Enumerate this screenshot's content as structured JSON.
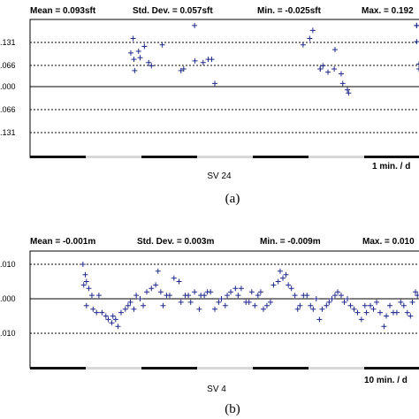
{
  "chart_data": [
    {
      "type": "scatter",
      "panel_label": "(a)",
      "stats": [
        "Mean = 0.093sft",
        "Std. Dev. = 0.057sft",
        "Min. = -0.025sft",
        "Max. = 0.192"
      ],
      "ytick_labels": [
        ".131",
        ".066",
        ".000",
        ".066",
        ".131"
      ],
      "yticks": [
        0.131,
        0.066,
        0.0,
        -0.066,
        -0.131
      ],
      "ylim": [
        -0.2,
        0.2
      ],
      "xlim": [
        0,
        100
      ],
      "sv_label": "SV 24",
      "time_scale": "1 min. / d",
      "grid": "dashed horizontal reference lines",
      "points": [
        [
          26.5,
          0.15
        ],
        [
          25.9,
          0.105
        ],
        [
          27.9,
          0.11
        ],
        [
          29.4,
          0.125
        ],
        [
          28.3,
          0.09
        ],
        [
          26.7,
          0.085
        ],
        [
          30.5,
          0.075
        ],
        [
          31.2,
          0.065
        ],
        [
          34,
          0.13
        ],
        [
          26.9,
          0.05
        ],
        [
          42.3,
          0.19
        ],
        [
          38.8,
          0.05
        ],
        [
          39.5,
          0.055
        ],
        [
          42.4,
          0.08
        ],
        [
          44.5,
          0.075
        ],
        [
          45.8,
          0.085
        ],
        [
          46.7,
          0.085
        ],
        [
          47.5,
          0.01
        ],
        [
          70.2,
          0.13
        ],
        [
          71.9,
          0.15
        ],
        [
          72.7,
          0.175
        ],
        [
          78.4,
          0.115
        ],
        [
          74.6,
          0.055
        ],
        [
          74.6,
          0.055
        ],
        [
          75.3,
          0.065
        ],
        [
          78.2,
          0.055
        ],
        [
          76.6,
          0.045
        ],
        [
          80.4,
          0.01
        ],
        [
          81.6,
          -0.01
        ],
        [
          81.9,
          -0.02
        ],
        [
          80,
          0.04
        ],
        [
          99.4,
          0.19
        ],
        [
          99.4,
          0.19
        ],
        [
          99.4,
          0.14
        ],
        [
          100,
          0.07
        ],
        [
          100,
          0.055
        ]
      ]
    },
    {
      "type": "scatter",
      "panel_label": "(b)",
      "stats": [
        "Mean = -0.001m",
        "Std. Dev. = 0.003m",
        "Min. = -0.009m",
        "Max. = 0.010"
      ],
      "ytick_labels": [
        ".010",
        ".000",
        ".010"
      ],
      "yticks": [
        0.01,
        0.0,
        -0.01
      ],
      "ylim": [
        -0.02,
        0.02
      ],
      "xlim": [
        0,
        100
      ],
      "sv_label": "SV 4",
      "time_scale": "10 min. / d",
      "grid": "dashed horizontal reference lines",
      "points": [
        [
          13.6,
          0.01
        ],
        [
          14.2,
          0.007
        ],
        [
          13.8,
          0.004
        ],
        [
          14.5,
          0.005
        ],
        [
          15.1,
          0.003
        ],
        [
          15.9,
          0.001
        ],
        [
          14.5,
          -0.002
        ],
        [
          16.2,
          -0.003
        ],
        [
          17.1,
          -0.004
        ],
        [
          17.7,
          0.001
        ],
        [
          18.5,
          -0.004
        ],
        [
          19.5,
          -0.005
        ],
        [
          20.1,
          -0.006
        ],
        [
          21.3,
          -0.005
        ],
        [
          22,
          -0.006
        ],
        [
          21,
          -0.007
        ],
        [
          22.6,
          -0.008
        ],
        [
          23.4,
          -0.004
        ],
        [
          24.5,
          -0.003
        ],
        [
          25.2,
          -0.002
        ],
        [
          25.8,
          -0.001
        ],
        [
          26.7,
          -0.003
        ],
        [
          27.3,
          0.001
        ],
        [
          28.3,
          0
        ],
        [
          29.1,
          -0.002
        ],
        [
          30,
          0.002
        ],
        [
          31.2,
          0.003
        ],
        [
          32.3,
          0.004
        ],
        [
          32.9,
          0.008
        ],
        [
          33.6,
          0.002
        ],
        [
          34.2,
          -0.002
        ],
        [
          35.1,
          0.001
        ],
        [
          35.9,
          0.001
        ],
        [
          37,
          0.006
        ],
        [
          38.3,
          0.005
        ],
        [
          38.8,
          -0.001
        ],
        [
          39.9,
          0.001
        ],
        [
          40.7,
          0.001
        ],
        [
          41.3,
          -0.001
        ],
        [
          42.3,
          0.002
        ],
        [
          43.5,
          -0.003
        ],
        [
          43.9,
          0.001
        ],
        [
          44.8,
          0.001
        ],
        [
          45.6,
          0.002
        ],
        [
          46.4,
          0.002
        ],
        [
          47.5,
          -0.003
        ],
        [
          48.5,
          -0.001
        ],
        [
          49.2,
          0
        ],
        [
          50.2,
          -0.002
        ],
        [
          50.7,
          0.001
        ],
        [
          51.6,
          0.002
        ],
        [
          52.8,
          0.003
        ],
        [
          53.5,
          0.001
        ],
        [
          54.3,
          0.003
        ],
        [
          55.5,
          -0.001
        ],
        [
          56.3,
          -0.001
        ],
        [
          57,
          0.002
        ],
        [
          57.8,
          -0.002
        ],
        [
          58.6,
          0.001
        ],
        [
          59.3,
          0.002
        ],
        [
          60,
          -0.003
        ],
        [
          60.9,
          -0.002
        ],
        [
          61.8,
          -0.001
        ],
        [
          62.6,
          0.004
        ],
        [
          63.8,
          0.005
        ],
        [
          64.3,
          0.008
        ],
        [
          65,
          0.006
        ],
        [
          65.8,
          0.007
        ],
        [
          66.4,
          0.004
        ],
        [
          67.2,
          0.003
        ],
        [
          68.1,
          0.001
        ],
        [
          68.8,
          -0.003
        ],
        [
          69.4,
          -0.002
        ],
        [
          70.3,
          0.001
        ],
        [
          71.2,
          0.001
        ],
        [
          72.1,
          -0.002
        ],
        [
          72.8,
          -0.003
        ],
        [
          73.6,
          0
        ],
        [
          74.4,
          -0.006
        ],
        [
          75.1,
          -0.003
        ],
        [
          76.2,
          -0.002
        ],
        [
          76.9,
          -0.001
        ],
        [
          77.6,
          0
        ],
        [
          78.4,
          0.001
        ],
        [
          79.1,
          0.002
        ],
        [
          80,
          0.001
        ],
        [
          80.8,
          -0.001
        ],
        [
          81.6,
          0
        ],
        [
          82.4,
          -0.002
        ],
        [
          83.3,
          -0.003
        ],
        [
          84.2,
          -0.004
        ],
        [
          85.2,
          -0.006
        ],
        [
          86.1,
          -0.002
        ],
        [
          86.5,
          -0.004
        ],
        [
          87.5,
          -0.002
        ],
        [
          88.3,
          -0.003
        ],
        [
          89.1,
          -0.001
        ],
        [
          90,
          -0.004
        ],
        [
          91,
          -0.008
        ],
        [
          91.6,
          -0.005
        ],
        [
          92.5,
          -0.002
        ],
        [
          93.4,
          -0.004
        ],
        [
          94.3,
          -0.004
        ],
        [
          95.3,
          -0.001
        ],
        [
          96.1,
          -0.002
        ],
        [
          97,
          -0.004
        ],
        [
          97.8,
          -0.005
        ],
        [
          98.3,
          -0.001
        ],
        [
          99.1,
          0.002
        ],
        [
          99.6,
          0.001
        ]
      ]
    }
  ]
}
